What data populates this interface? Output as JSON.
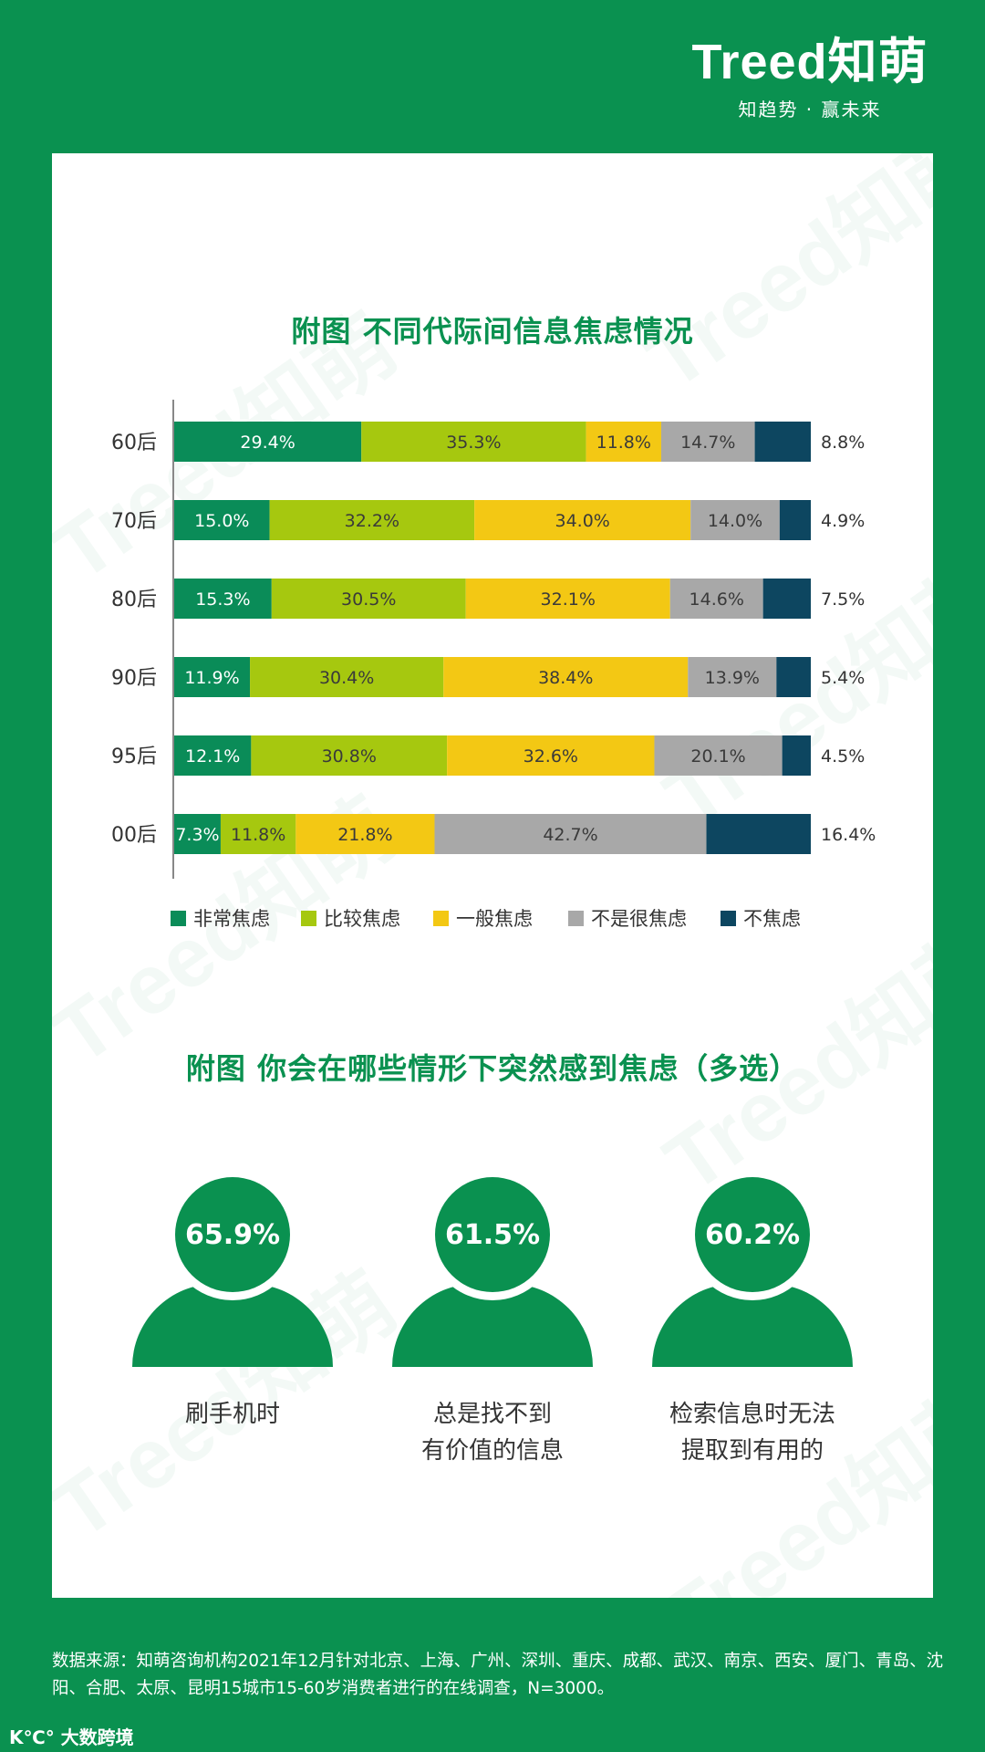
{
  "brand": {
    "logo_text": "Treed知萌",
    "tagline": "知趋势 · 赢未来"
  },
  "watermark_text": "Treed知萌",
  "chart_data": {
    "type": "bar",
    "orientation": "horizontal",
    "stacked": true,
    "title": "附图  不同代际间信息焦虑情况",
    "categories": [
      "60后",
      "70后",
      "80后",
      "90后",
      "95后",
      "00后"
    ],
    "series": [
      {
        "name": "非常焦虑",
        "color": "#0a8c58",
        "values": [
          29.4,
          15.0,
          15.3,
          11.9,
          12.1,
          7.3
        ]
      },
      {
        "name": "比较焦虑",
        "color": "#a6c80f",
        "values": [
          35.3,
          32.2,
          30.5,
          30.4,
          30.8,
          11.8
        ]
      },
      {
        "name": "一般焦虑",
        "color": "#f3c814",
        "values": [
          11.8,
          34.0,
          32.1,
          38.4,
          32.6,
          21.8
        ]
      },
      {
        "name": "不是很焦虑",
        "color": "#a8a8a8",
        "values": [
          14.7,
          14.0,
          14.6,
          13.9,
          20.1,
          42.7
        ]
      },
      {
        "name": "不焦虑",
        "color": "#0d4660",
        "values": [
          8.8,
          4.9,
          7.5,
          5.4,
          4.5,
          16.4
        ]
      }
    ],
    "labels": [
      [
        "29.4%",
        "35.3%",
        "11.8%",
        "14.7%",
        "8.8%"
      ],
      [
        "15.0%",
        "32.2%",
        "34.0%",
        "14.0%",
        "4.9%"
      ],
      [
        "15.3%",
        "30.5%",
        "32.1%",
        "14.6%",
        "7.5%"
      ],
      [
        "11.9%",
        "30.4%",
        "38.4%",
        "13.9%",
        "5.4%"
      ],
      [
        "12.1%",
        "30.8%",
        "32.6%",
        "20.1%",
        "4.5%"
      ],
      [
        "7.3%",
        "11.8%",
        "21.8%",
        "42.7%",
        "16.4%"
      ]
    ],
    "legend_position": "bottom",
    "grid": false
  },
  "section2": {
    "title": "附图  你会在哪些情形下突然感到焦虑（多选）",
    "items": [
      {
        "value": "65.9%",
        "caption": "刷手机时"
      },
      {
        "value": "61.5%",
        "caption": "总是找不到\n有价值的信息"
      },
      {
        "value": "60.2%",
        "caption": "检索信息时无法\n提取到有用的"
      }
    ]
  },
  "source": "数据来源：知萌咨询机构2021年12月针对北京、上海、广州、深圳、重庆、成都、武汉、南京、西安、厦门、青岛、沈阳、合肥、太原、昆明15城市15-60岁消费者进行的在线调查，N=3000。",
  "footer_logo": "K℃° 大数跨境"
}
